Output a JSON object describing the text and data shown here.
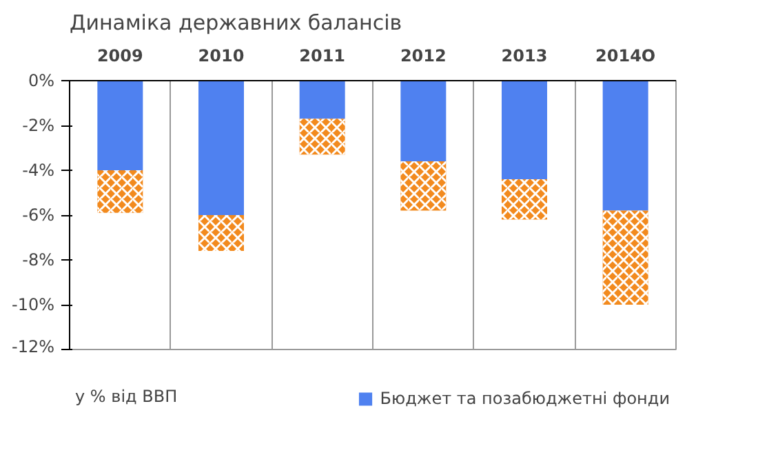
{
  "chart_data": {
    "type": "bar",
    "title": "Динаміка державних балансів",
    "categories": [
      "2009",
      "2010",
      "2011",
      "2012",
      "2013",
      "2014О"
    ],
    "stacked": true,
    "series": [
      {
        "name": "Бюджет та позабюджетні фонди",
        "color": "#4f81f0",
        "values": [
          -4.0,
          -6.0,
          -1.7,
          -3.6,
          -4.4,
          -5.8
        ]
      },
      {
        "color": "#f28a1e",
        "values": [
          -1.9,
          -1.6,
          -1.6,
          -2.2,
          -1.8,
          -4.2
        ]
      }
    ],
    "ylim": [
      -12,
      0
    ],
    "yticks": [
      {
        "value": 0,
        "label": "0%"
      },
      {
        "value": -2,
        "label": "-2%"
      },
      {
        "value": -4,
        "label": "-4%"
      },
      {
        "value": -6,
        "label": "-6%"
      },
      {
        "value": -8,
        "label": "-8%"
      },
      {
        "value": -10,
        "label": "-10%"
      },
      {
        "value": -12,
        "label": "-12%"
      }
    ],
    "grid": "x",
    "legend": "bottom right",
    "annotations": [
      "у % від ВВП"
    ]
  }
}
